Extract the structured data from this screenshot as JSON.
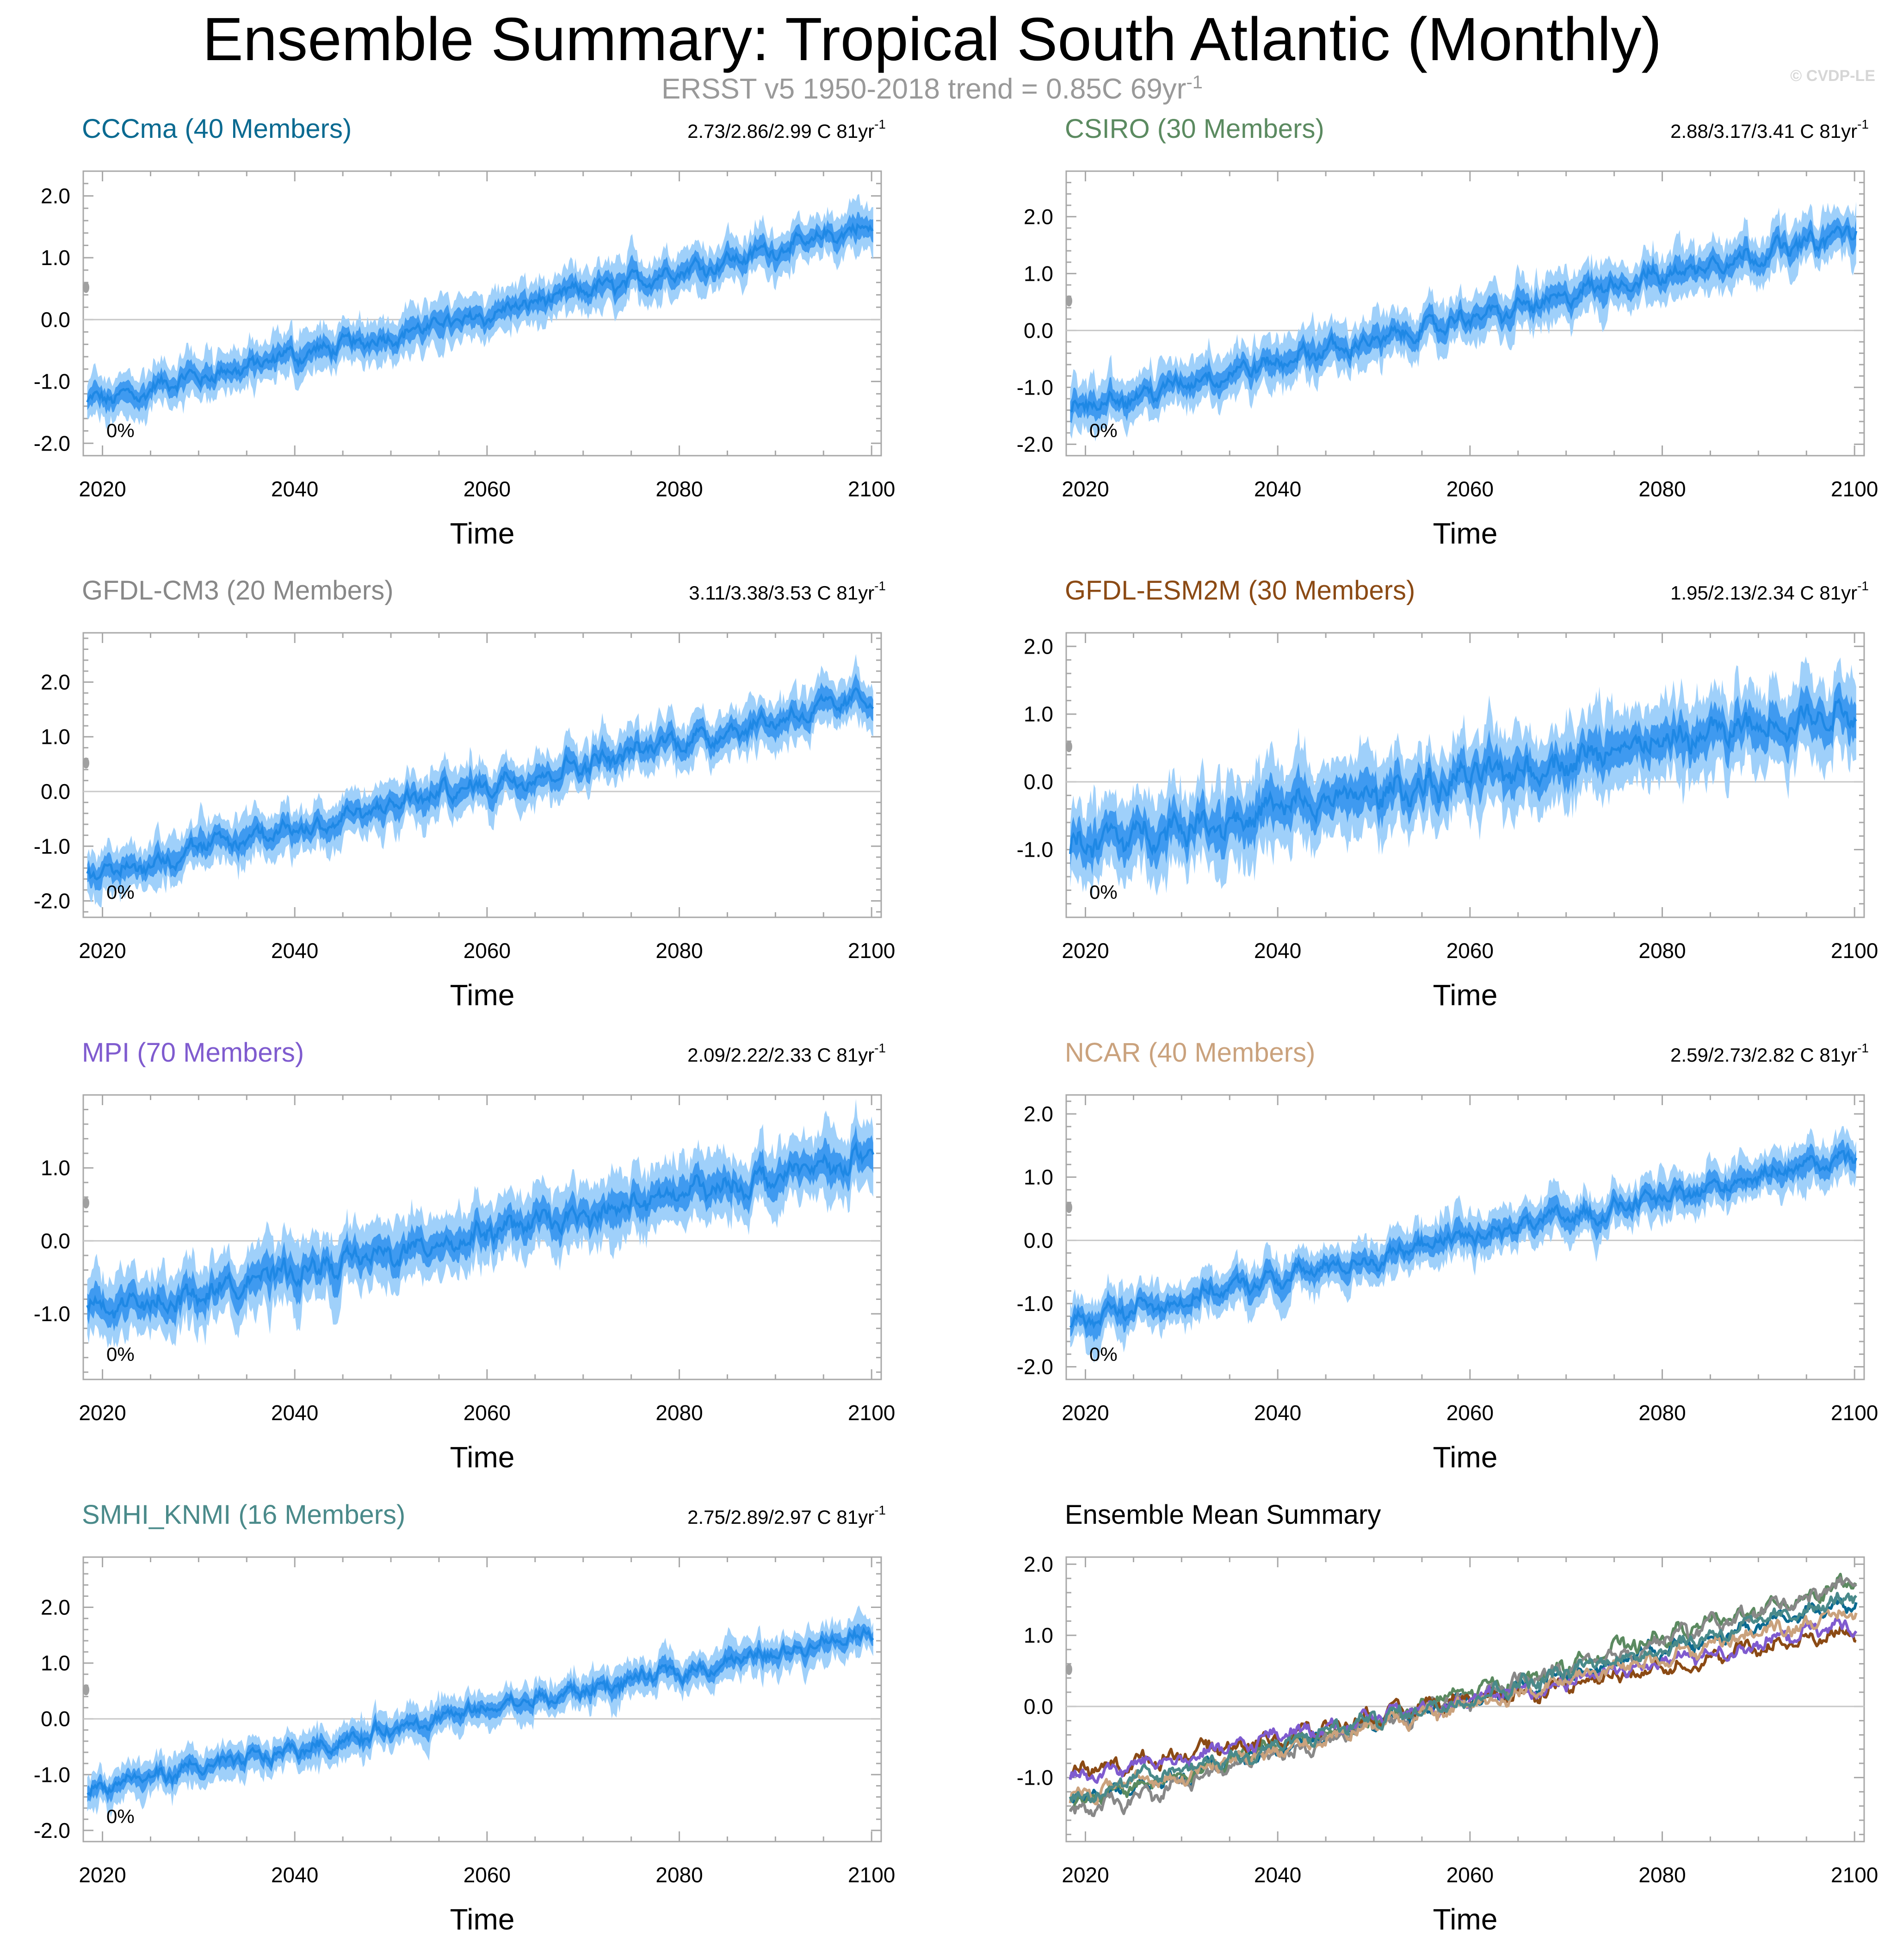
{
  "title": "Ensemble Summary: Tropical South Atlantic (Monthly)",
  "subtitle": {
    "text": "ERSST v5 1950-2018 trend = 0.85C 69yr",
    "superscript": "-1"
  },
  "watermark": "© CVDP-LE",
  "colors": {
    "median_line": "#1e88e5",
    "inner_band": "#3f9af0",
    "outer_band": "#9fd0fa",
    "observed_marker": "#a0a0a0",
    "zero_line": "#c8c8c8",
    "axis": "#a8a8a8"
  },
  "chart_data": [
    {
      "type": "line",
      "title": "CCCma (40 Members)",
      "title_color": "#0a6a91",
      "trend_label": "2.73/2.86/2.99 C 81yr",
      "trend_superscript": "-1",
      "percent_label": "0%",
      "xlabel": "Time",
      "xlim": [
        2018,
        2101
      ],
      "xticks": [
        2020,
        2040,
        2060,
        2080,
        2100
      ],
      "xtick_labels": [
        "2020",
        "2040",
        "2060",
        "2080",
        "2100"
      ],
      "ylim": [
        -2.2,
        2.4
      ],
      "yticks": [
        -2.0,
        -1.0,
        0.0,
        1.0,
        2.0
      ],
      "ytick_labels": [
        "-2.0",
        "-1.0",
        "0.0",
        "1.0",
        "2.0"
      ],
      "observed_value": 0.52,
      "series": {
        "median": {
          "x": [
            2018,
            2101
          ],
          "y": [
            -1.35,
            1.5
          ]
        },
        "spread_inner": 0.12,
        "spread_outer": 0.25,
        "noise": 0.1
      }
    },
    {
      "type": "line",
      "title": "CSIRO (30 Members)",
      "title_color": "#5b8a60",
      "trend_label": "2.88/3.17/3.41 C 81yr",
      "trend_superscript": "-1",
      "percent_label": "0%",
      "xlabel": "Time",
      "xlim": [
        2018,
        2101
      ],
      "xticks": [
        2020,
        2040,
        2060,
        2080,
        2100
      ],
      "xtick_labels": [
        "2020",
        "2040",
        "2060",
        "2080",
        "2100"
      ],
      "ylim": [
        -2.2,
        2.8
      ],
      "yticks": [
        -2.0,
        -1.0,
        0.0,
        1.0,
        2.0
      ],
      "ytick_labels": [
        "-2.0",
        "-1.0",
        "0.0",
        "1.0",
        "2.0"
      ],
      "observed_value": 0.52,
      "series": {
        "median": {
          "x": [
            2018,
            2101
          ],
          "y": [
            -1.4,
            1.75
          ]
        },
        "spread_inner": 0.14,
        "spread_outer": 0.3,
        "noise": 0.12
      }
    },
    {
      "type": "line",
      "title": "GFDL-CM3 (20 Members)",
      "title_color": "#888888",
      "trend_label": "3.11/3.38/3.53 C 81yr",
      "trend_superscript": "-1",
      "percent_label": "0%",
      "xlabel": "Time",
      "xlim": [
        2018,
        2101
      ],
      "xticks": [
        2020,
        2040,
        2060,
        2080,
        2100
      ],
      "xtick_labels": [
        "2020",
        "2040",
        "2060",
        "2080",
        "2100"
      ],
      "ylim": [
        -2.3,
        2.9
      ],
      "yticks": [
        -2.0,
        -1.0,
        0.0,
        1.0,
        2.0
      ],
      "ytick_labels": [
        "-2.0",
        "-1.0",
        "0.0",
        "1.0",
        "2.0"
      ],
      "observed_value": 0.52,
      "series": {
        "median": {
          "x": [
            2018,
            2101
          ],
          "y": [
            -1.55,
            1.75
          ]
        },
        "spread_inner": 0.15,
        "spread_outer": 0.3,
        "noise": 0.13
      }
    },
    {
      "type": "line",
      "title": "GFDL-ESM2M (30 Members)",
      "title_color": "#8b4a14",
      "trend_label": "1.95/2.13/2.34 C 81yr",
      "trend_superscript": "-1",
      "percent_label": "0%",
      "xlabel": "Time",
      "xlim": [
        2018,
        2101
      ],
      "xticks": [
        2020,
        2040,
        2060,
        2080,
        2100
      ],
      "xtick_labels": [
        "2020",
        "2040",
        "2060",
        "2080",
        "2100"
      ],
      "ylim": [
        -2.0,
        2.2
      ],
      "yticks": [
        -1.0,
        0.0,
        1.0,
        2.0
      ],
      "ytick_labels": [
        "-1.0",
        "0.0",
        "1.0",
        "2.0"
      ],
      "observed_value": 0.52,
      "series": {
        "median": {
          "x": [
            2018,
            2101
          ],
          "y": [
            -0.95,
            1.05
          ]
        },
        "spread_inner": 0.2,
        "spread_outer": 0.42,
        "noise": 0.17
      }
    },
    {
      "type": "line",
      "title": "MPI (70 Members)",
      "title_color": "#7f5bcf",
      "trend_label": "2.09/2.22/2.33 C 81yr",
      "trend_superscript": "-1",
      "percent_label": "0%",
      "xlabel": "Time",
      "xlim": [
        2018,
        2101
      ],
      "xticks": [
        2020,
        2040,
        2060,
        2080,
        2100
      ],
      "xtick_labels": [
        "2020",
        "2040",
        "2060",
        "2080",
        "2100"
      ],
      "ylim": [
        -1.9,
        2.0
      ],
      "yticks": [
        -1.0,
        0.0,
        1.0
      ],
      "ytick_labels": [
        "-1.0",
        "0.0",
        "1.0"
      ],
      "observed_value": 0.52,
      "series": {
        "median": {
          "x": [
            2018,
            2101
          ],
          "y": [
            -1.0,
            1.15
          ]
        },
        "spread_inner": 0.15,
        "spread_outer": 0.32,
        "noise": 0.12
      }
    },
    {
      "type": "line",
      "title": "NCAR (40 Members)",
      "title_color": "#caa27d",
      "trend_label": "2.59/2.73/2.82 C 81yr",
      "trend_superscript": "-1",
      "percent_label": "0%",
      "xlabel": "Time",
      "xlim": [
        2018,
        2101
      ],
      "xticks": [
        2020,
        2040,
        2060,
        2080,
        2100
      ],
      "xtick_labels": [
        "2020",
        "2040",
        "2060",
        "2080",
        "2100"
      ],
      "ylim": [
        -2.2,
        2.3
      ],
      "yticks": [
        -2.0,
        -1.0,
        0.0,
        1.0,
        2.0
      ],
      "ytick_labels": [
        "-2.0",
        "-1.0",
        "0.0",
        "1.0",
        "2.0"
      ],
      "observed_value": 0.52,
      "series": {
        "median": {
          "x": [
            2018,
            2101
          ],
          "y": [
            -1.3,
            1.35
          ]
        },
        "spread_inner": 0.12,
        "spread_outer": 0.24,
        "noise": 0.1
      }
    },
    {
      "type": "line",
      "title": "SMHI_KNMI (16 Members)",
      "title_color": "#4a8a8a",
      "trend_label": "2.75/2.89/2.97 C 81yr",
      "trend_superscript": "-1",
      "percent_label": "0%",
      "xlabel": "Time",
      "xlim": [
        2018,
        2101
      ],
      "xticks": [
        2020,
        2040,
        2060,
        2080,
        2100
      ],
      "xtick_labels": [
        "2020",
        "2040",
        "2060",
        "2080",
        "2100"
      ],
      "ylim": [
        -2.2,
        2.9
      ],
      "yticks": [
        -2.0,
        -1.0,
        0.0,
        1.0,
        2.0
      ],
      "ytick_labels": [
        "-2.0",
        "-1.0",
        "0.0",
        "1.0",
        "2.0"
      ],
      "observed_value": 0.52,
      "series": {
        "median": {
          "x": [
            2018,
            2101
          ],
          "y": [
            -1.3,
            1.55
          ]
        },
        "spread_inner": 0.1,
        "spread_outer": 0.22,
        "noise": 0.1
      }
    },
    {
      "type": "line",
      "title": "Ensemble Mean Summary",
      "title_color": "#000000",
      "xlabel": "Time",
      "xlim": [
        2018,
        2101
      ],
      "xticks": [
        2020,
        2040,
        2060,
        2080,
        2100
      ],
      "xtick_labels": [
        "2020",
        "2040",
        "2060",
        "2080",
        "2100"
      ],
      "ylim": [
        -1.9,
        2.1
      ],
      "yticks": [
        -1.0,
        0.0,
        1.0,
        2.0
      ],
      "ytick_labels": [
        "-1.0",
        "0.0",
        "1.0",
        "2.0"
      ],
      "observed_value": 0.52,
      "series": [
        {
          "name": "CCCma",
          "color": "#0a6a91",
          "x": [
            2018,
            2101
          ],
          "y": [
            -1.35,
            1.5
          ]
        },
        {
          "name": "CSIRO",
          "color": "#5b8a60",
          "x": [
            2018,
            2101
          ],
          "y": [
            -1.4,
            1.75
          ]
        },
        {
          "name": "GFDL-CM3",
          "color": "#888888",
          "x": [
            2018,
            2101
          ],
          "y": [
            -1.55,
            1.75
          ]
        },
        {
          "name": "GFDL-ESM2M",
          "color": "#8b4a14",
          "x": [
            2018,
            2101
          ],
          "y": [
            -0.95,
            1.05
          ]
        },
        {
          "name": "MPI",
          "color": "#7f5bcf",
          "x": [
            2018,
            2101
          ],
          "y": [
            -1.0,
            1.15
          ]
        },
        {
          "name": "NCAR",
          "color": "#caa27d",
          "x": [
            2018,
            2101
          ],
          "y": [
            -1.3,
            1.35
          ]
        },
        {
          "name": "SMHI_KNMI",
          "color": "#4a8a8a",
          "x": [
            2018,
            2101
          ],
          "y": [
            -1.3,
            1.55
          ]
        }
      ]
    }
  ]
}
